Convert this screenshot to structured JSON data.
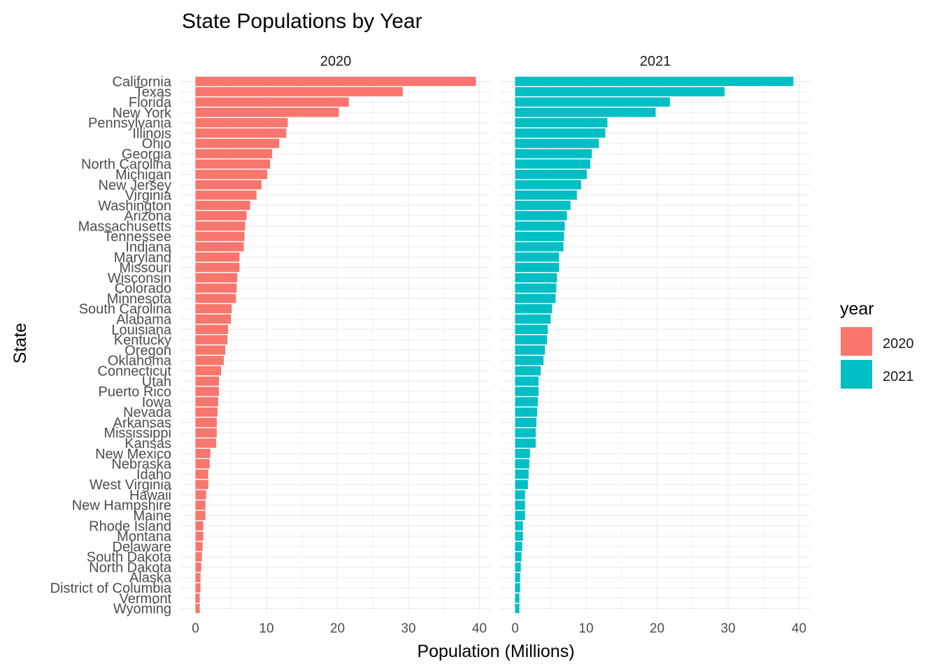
{
  "chart_data": {
    "type": "bar",
    "orientation": "horizontal",
    "title": "State Populations by Year",
    "xlabel": "Population (Millions)",
    "ylabel": "State",
    "xlim": [
      0,
      40
    ],
    "x_ticks": [
      "0",
      "10",
      "20",
      "30",
      "40"
    ],
    "grid": true,
    "legend": {
      "title": "year",
      "placement": "right",
      "entries": [
        {
          "label": "2020",
          "color": "#F8766D"
        },
        {
          "label": "2021",
          "color": "#00BFC4"
        }
      ]
    },
    "categories": [
      "California",
      "Texas",
      "Florida",
      "New York",
      "Pennsylvania",
      "Illinois",
      "Ohio",
      "Georgia",
      "North Carolina",
      "Michigan",
      "New Jersey",
      "Virginia",
      "Washington",
      "Arizona",
      "Massachusetts",
      "Tennessee",
      "Indiana",
      "Maryland",
      "Missouri",
      "Wisconsin",
      "Colorado",
      "Minnesota",
      "South Carolina",
      "Alabama",
      "Louisiana",
      "Kentucky",
      "Oregon",
      "Oklahoma",
      "Connecticut",
      "Utah",
      "Puerto Rico",
      "Iowa",
      "Nevada",
      "Arkansas",
      "Mississippi",
      "Kansas",
      "New Mexico",
      "Nebraska",
      "Idaho",
      "West Virginia",
      "Hawaii",
      "New Hampshire",
      "Maine",
      "Rhode Island",
      "Montana",
      "Delaware",
      "South Dakota",
      "North Dakota",
      "Alaska",
      "District of Columbia",
      "Vermont",
      "Wyoming"
    ],
    "panels": [
      {
        "name": "2020",
        "color": "#F8766D",
        "values": [
          39.5,
          29.2,
          21.6,
          20.2,
          13.0,
          12.8,
          11.8,
          10.8,
          10.5,
          10.1,
          9.3,
          8.6,
          7.7,
          7.2,
          7.0,
          6.9,
          6.8,
          6.2,
          6.2,
          5.9,
          5.8,
          5.7,
          5.1,
          5.0,
          4.6,
          4.5,
          4.2,
          4.0,
          3.6,
          3.3,
          3.3,
          3.2,
          3.1,
          3.0,
          3.0,
          2.9,
          2.1,
          2.0,
          1.8,
          1.8,
          1.5,
          1.4,
          1.4,
          1.1,
          1.1,
          1.0,
          0.9,
          0.8,
          0.7,
          0.7,
          0.6,
          0.6
        ]
      },
      {
        "name": "2021",
        "color": "#00BFC4",
        "values": [
          39.2,
          29.5,
          21.8,
          19.8,
          13.0,
          12.7,
          11.8,
          10.8,
          10.6,
          10.1,
          9.3,
          8.7,
          7.8,
          7.3,
          7.0,
          6.9,
          6.8,
          6.2,
          6.2,
          5.9,
          5.8,
          5.7,
          5.2,
          5.0,
          4.6,
          4.5,
          4.2,
          4.0,
          3.6,
          3.3,
          3.3,
          3.2,
          3.1,
          3.0,
          2.9,
          2.9,
          2.1,
          2.0,
          1.9,
          1.8,
          1.4,
          1.4,
          1.4,
          1.1,
          1.1,
          1.0,
          0.9,
          0.8,
          0.7,
          0.7,
          0.6,
          0.6
        ]
      }
    ]
  }
}
